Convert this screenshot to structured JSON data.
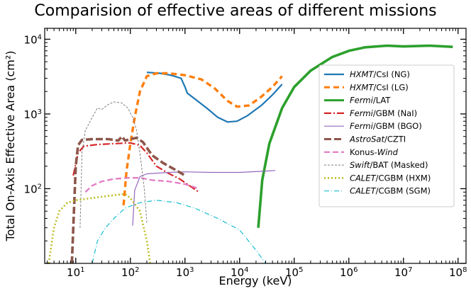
{
  "chart_data": {
    "type": "line",
    "title": "Comparision of effective areas of different missions",
    "xlabel": "Energy (keV)",
    "ylabel": "Total On-Axis Effective Area (cm²)",
    "xscale": "log",
    "yscale": "log",
    "xlim": [
      2.7,
      140000000
    ],
    "ylim": [
      10,
      14000
    ],
    "xticks": [
      {
        "value": 10,
        "base": "10",
        "exp": "1"
      },
      {
        "value": 100,
        "base": "10",
        "exp": "2"
      },
      {
        "value": 1000,
        "base": "10",
        "exp": "3"
      },
      {
        "value": 10000,
        "base": "10",
        "exp": "4"
      },
      {
        "value": 100000,
        "base": "10",
        "exp": "5"
      },
      {
        "value": 1000000,
        "base": "10",
        "exp": "6"
      },
      {
        "value": 10000000,
        "base": "10",
        "exp": "7"
      },
      {
        "value": 100000000,
        "base": "10",
        "exp": "8"
      }
    ],
    "yticks": [
      {
        "value": 100,
        "base": "10",
        "exp": "2"
      },
      {
        "value": 1000,
        "base": "10",
        "exp": "3"
      },
      {
        "value": 10000,
        "base": "10",
        "exp": "4"
      }
    ],
    "legend_position": "right",
    "series": [
      {
        "id": "hxmt-csi-ng",
        "label_italic": "HXMT",
        "label_rest": "/CsI (NG)",
        "color": "#1f77b4",
        "dash": "solid",
        "width": 2.2,
        "points": [
          [
            200,
            3600
          ],
          [
            350,
            3500
          ],
          [
            550,
            3300
          ],
          [
            850,
            3000
          ],
          [
            1000,
            2300
          ],
          [
            1100,
            1900
          ],
          [
            1500,
            1600
          ],
          [
            2500,
            1200
          ],
          [
            4000,
            900
          ],
          [
            6000,
            780
          ],
          [
            9000,
            800
          ],
          [
            14000,
            950
          ],
          [
            25000,
            1300
          ],
          [
            40000,
            1800
          ],
          [
            60000,
            2500
          ]
        ]
      },
      {
        "id": "hxmt-csi-lg",
        "label_italic": "HXMT",
        "label_rest": "/CsI (LG)",
        "color": "#ff7f0e",
        "dash": "8,5",
        "width": 3.4,
        "points": [
          [
            75,
            60
          ],
          [
            85,
            170
          ],
          [
            100,
            400
          ],
          [
            120,
            900
          ],
          [
            150,
            2000
          ],
          [
            200,
            3200
          ],
          [
            300,
            3500
          ],
          [
            500,
            3500
          ],
          [
            1000,
            3300
          ],
          [
            2000,
            2900
          ],
          [
            3500,
            2200
          ],
          [
            6000,
            1500
          ],
          [
            9000,
            1250
          ],
          [
            15000,
            1300
          ],
          [
            25000,
            1700
          ],
          [
            40000,
            2300
          ],
          [
            60000,
            3200
          ]
        ]
      },
      {
        "id": "fermi-lat",
        "label_italic": "Fermi",
        "label_rest": "/LAT",
        "color": "#2ca02c",
        "dash": "solid",
        "width": 3.6,
        "points": [
          [
            22000,
            30
          ],
          [
            26000,
            130
          ],
          [
            35000,
            400
          ],
          [
            60000,
            1200
          ],
          [
            100000,
            2300
          ],
          [
            200000,
            3800
          ],
          [
            500000,
            5800
          ],
          [
            1000000,
            7000
          ],
          [
            2000000,
            7800
          ],
          [
            5000000,
            8200
          ],
          [
            10000000,
            8000
          ],
          [
            30000000,
            8200
          ],
          [
            80000000,
            7900
          ]
        ]
      },
      {
        "id": "fermi-gbm-nai",
        "label_italic": "Fermi",
        "label_rest": "/GBM (NaI)",
        "color": "#d62728",
        "dash": "10,3,2,3",
        "width": 2.2,
        "points": [
          [
            9,
            150
          ],
          [
            11,
            300
          ],
          [
            14,
            370
          ],
          [
            25,
            390
          ],
          [
            50,
            400
          ],
          [
            100,
            410
          ],
          [
            150,
            380
          ],
          [
            200,
            300
          ],
          [
            300,
            200
          ],
          [
            500,
            160
          ],
          [
            800,
            135
          ],
          [
            1200,
            110
          ],
          [
            1800,
            90
          ]
        ]
      },
      {
        "id": "fermi-gbm-bgo",
        "label_italic": "Fermi",
        "label_rest": "/GBM (BGO)",
        "color": "#9467bd",
        "dash": "solid",
        "width": 1.2,
        "points": [
          [
            110,
            32
          ],
          [
            120,
            95
          ],
          [
            150,
            145
          ],
          [
            200,
            158
          ],
          [
            500,
            165
          ],
          [
            1000,
            168
          ],
          [
            3000,
            165
          ],
          [
            10000,
            165
          ],
          [
            30000,
            172
          ],
          [
            45000,
            175
          ]
        ]
      },
      {
        "id": "astrosat-czti",
        "label_italic": "AstroSat",
        "label_rest": "/CZTI",
        "color": "#8c564b",
        "dash": "10,4",
        "width": 3.6,
        "points": [
          [
            8.5,
            10
          ],
          [
            9.5,
            80
          ],
          [
            10,
            200
          ],
          [
            11,
            380
          ],
          [
            13,
            450
          ],
          [
            20,
            460
          ],
          [
            40,
            460
          ],
          [
            60,
            440
          ],
          [
            70,
            500
          ],
          [
            80,
            440
          ],
          [
            100,
            460
          ],
          [
            130,
            480
          ],
          [
            170,
            420
          ],
          [
            250,
            280
          ],
          [
            400,
            220
          ],
          [
            700,
            175
          ],
          [
            1000,
            150
          ]
        ]
      },
      {
        "id": "konus-wind",
        "label_italic_after": "Wind",
        "label_rest": "Konus-",
        "color": "#e377c2",
        "dash": "8,4",
        "width": 2.2,
        "points": [
          [
            15,
            90
          ],
          [
            20,
            110
          ],
          [
            30,
            125
          ],
          [
            50,
            135
          ],
          [
            100,
            140
          ],
          [
            150,
            140
          ],
          [
            250,
            130
          ],
          [
            500,
            125
          ],
          [
            1000,
            115
          ],
          [
            1800,
            100
          ]
        ]
      },
      {
        "id": "swift-bat",
        "label_italic": "Swift",
        "label_rest": "/BAT (Masked)",
        "color": "#7f7f7f",
        "dash": "3,2",
        "width": 1.0,
        "points": [
          [
            12,
            30
          ],
          [
            13,
            300
          ],
          [
            15,
            600
          ],
          [
            20,
            900
          ],
          [
            25,
            1200
          ],
          [
            30,
            1150
          ],
          [
            40,
            1350
          ],
          [
            50,
            1450
          ],
          [
            70,
            1400
          ],
          [
            90,
            1200
          ],
          [
            110,
            900
          ],
          [
            130,
            600
          ],
          [
            150,
            300
          ],
          [
            180,
            100
          ],
          [
            200,
            35
          ]
        ]
      },
      {
        "id": "calet-cgbm-hxm",
        "label_italic": "CALET",
        "label_rest": "/CGBM (HXM)",
        "color": "#bcbd22",
        "dash": "2,3",
        "width": 2.6,
        "points": [
          [
            3.2,
            10
          ],
          [
            4,
            30
          ],
          [
            5,
            50
          ],
          [
            7,
            65
          ],
          [
            10,
            70
          ],
          [
            20,
            75
          ],
          [
            40,
            80
          ],
          [
            80,
            85
          ],
          [
            100,
            75
          ],
          [
            150,
            50
          ],
          [
            200,
            20
          ],
          [
            230,
            10
          ]
        ]
      },
      {
        "id": "calet-cgbm-sgm",
        "label_italic": "CALET",
        "label_rest": "/CGBM (SGM)",
        "color": "#17becf",
        "dash": "7,3,1,3",
        "width": 1.2,
        "points": [
          [
            20,
            10
          ],
          [
            25,
            20
          ],
          [
            35,
            30
          ],
          [
            50,
            40
          ],
          [
            80,
            55
          ],
          [
            150,
            65
          ],
          [
            300,
            70
          ],
          [
            700,
            65
          ],
          [
            1500,
            55
          ],
          [
            4000,
            40
          ],
          [
            10000,
            28
          ],
          [
            20000,
            15
          ],
          [
            30000,
            10
          ]
        ]
      }
    ]
  }
}
